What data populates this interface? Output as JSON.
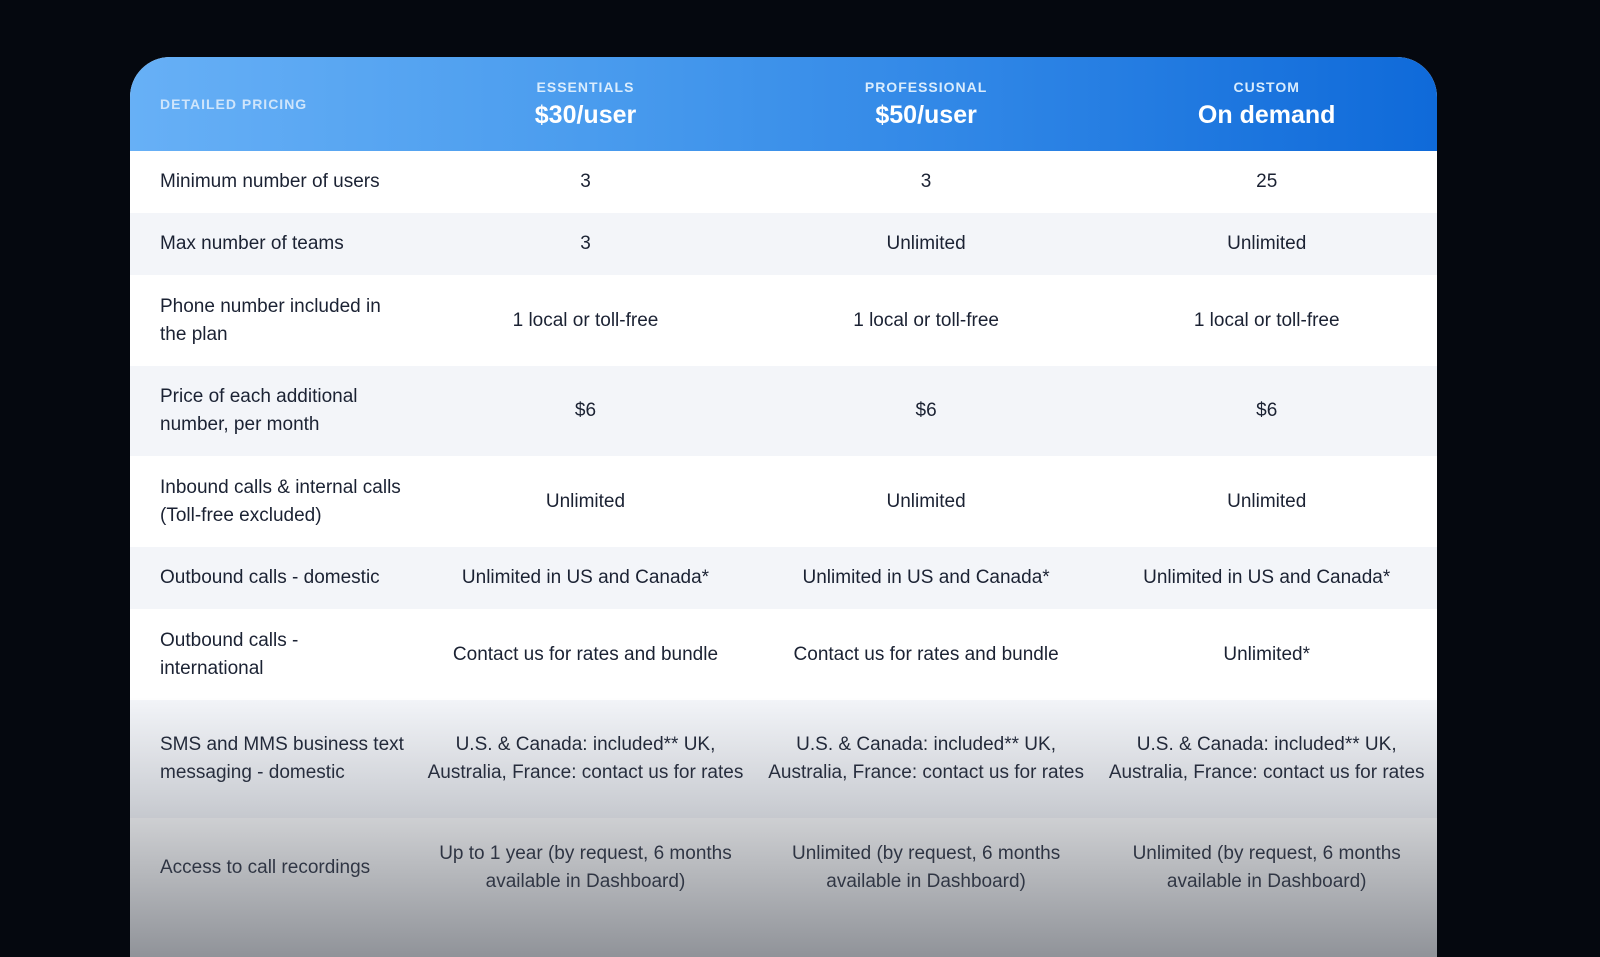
{
  "header": {
    "title": "DETAILED PRICING",
    "plans": [
      {
        "name": "ESSENTIALS",
        "price": "$30/user"
      },
      {
        "name": "PROFESSIONAL",
        "price": "$50/user"
      },
      {
        "name": "CUSTOM",
        "price": "On demand"
      }
    ]
  },
  "rows": [
    {
      "label": "Minimum number of users",
      "values": [
        "3",
        "3",
        "25"
      ]
    },
    {
      "label": "Max number of teams",
      "values": [
        "3",
        "Unlimited",
        "Unlimited"
      ]
    },
    {
      "label": "Phone number included in the plan",
      "values": [
        "1 local or toll-free",
        "1 local or toll-free",
        "1 local or toll-free"
      ]
    },
    {
      "label": "Price of each additional number, per month",
      "values": [
        "$6",
        "$6",
        "$6"
      ]
    },
    {
      "label": "Inbound calls & internal calls (Toll-free excluded)",
      "values": [
        "Unlimited",
        "Unlimited",
        "Unlimited"
      ]
    },
    {
      "label": "Outbound calls - domestic",
      "values": [
        "Unlimited in US and Canada*",
        "Unlimited in US and Canada*",
        "Unlimited in US and Canada*"
      ]
    },
    {
      "label": "Outbound calls - international",
      "values": [
        "Contact us for rates and bundle",
        "Contact us for rates and bundle",
        "Unlimited*"
      ]
    },
    {
      "label": "SMS and MMS business text messaging - domestic",
      "values": [
        "U.S. & Canada: included** UK, Australia, France: contact us for rates",
        "U.S. & Canada: included** UK, Australia, France: contact us for rates",
        "U.S. & Canada: included** UK, Australia, France: contact us for rates"
      ]
    },
    {
      "label": "Access to call recordings",
      "values": [
        "Up to 1 year (by request, 6 months available in Dashboard)",
        "Unlimited (by request, 6 months available in Dashboard)",
        "Unlimited (by request, 6 months available in Dashboard)"
      ]
    }
  ]
}
